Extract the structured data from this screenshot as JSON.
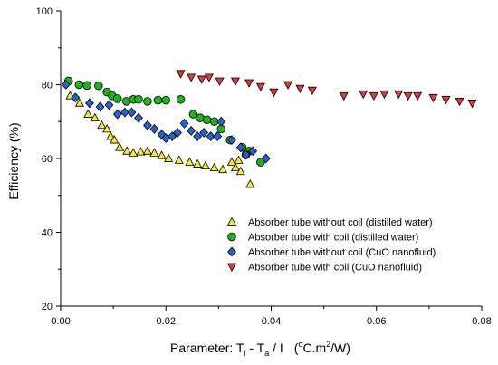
{
  "chart_data": {
    "type": "scatter",
    "xlabel_main": "Parameter:  T",
    "xlabel_sub1": "i",
    "xlabel_mid": " - T",
    "xlabel_sub2": "a",
    "xlabel_tail": " / I",
    "xlabel_unit_open": "(",
    "xlabel_unit_sup": "o",
    "xlabel_unit_rest": "C.m",
    "xlabel_unit_sup2": "2",
    "xlabel_unit_close": "/W)",
    "ylabel": "Efficiency (%)",
    "xlim": [
      0.0,
      0.08
    ],
    "ylim": [
      20,
      100
    ],
    "x_ticks": [
      "0.00",
      "0.02",
      "0.04",
      "0.06",
      "0.08"
    ],
    "y_ticks": [
      "20",
      "40",
      "60",
      "80",
      "100"
    ],
    "legend_position": "lower-right",
    "series": [
      {
        "name": "Absorber tube without coil (distilled water)",
        "marker": "triangle-up",
        "color": "#f0ec3c",
        "points": [
          [
            0.0018,
            77
          ],
          [
            0.0036,
            75
          ],
          [
            0.0052,
            72
          ],
          [
            0.0065,
            71
          ],
          [
            0.0078,
            69
          ],
          [
            0.0088,
            68
          ],
          [
            0.0095,
            66
          ],
          [
            0.0102,
            65
          ],
          [
            0.0112,
            63
          ],
          [
            0.0126,
            62
          ],
          [
            0.0138,
            61.5
          ],
          [
            0.0152,
            61.8
          ],
          [
            0.0165,
            62
          ],
          [
            0.0178,
            61.5
          ],
          [
            0.0192,
            60.8
          ],
          [
            0.0205,
            60
          ],
          [
            0.0225,
            59.5
          ],
          [
            0.0245,
            59
          ],
          [
            0.026,
            58.5
          ],
          [
            0.0275,
            58
          ],
          [
            0.0292,
            57.5
          ],
          [
            0.0308,
            57
          ],
          [
            0.0325,
            59
          ],
          [
            0.0332,
            57.5
          ],
          [
            0.0342,
            56.5
          ],
          [
            0.0338,
            59.5
          ],
          [
            0.036,
            53
          ]
        ]
      },
      {
        "name": "Absorber tube with coil (distilled water)",
        "marker": "circle",
        "color": "#22b022",
        "points": [
          [
            0.0015,
            81
          ],
          [
            0.0035,
            80
          ],
          [
            0.005,
            79.8
          ],
          [
            0.0072,
            79.7
          ],
          [
            0.0088,
            78
          ],
          [
            0.0098,
            77
          ],
          [
            0.0108,
            76.2
          ],
          [
            0.0125,
            75.5
          ],
          [
            0.0138,
            76
          ],
          [
            0.0148,
            76
          ],
          [
            0.0165,
            75.5
          ],
          [
            0.0185,
            75.8
          ],
          [
            0.02,
            75.8
          ],
          [
            0.0228,
            76
          ],
          [
            0.0252,
            72
          ],
          [
            0.0265,
            71
          ],
          [
            0.0278,
            70.5
          ],
          [
            0.0292,
            70
          ],
          [
            0.0305,
            68
          ],
          [
            0.0322,
            65
          ],
          [
            0.0345,
            63
          ],
          [
            0.0358,
            62
          ],
          [
            0.038,
            59
          ],
          [
            0.0352,
            61
          ]
        ]
      },
      {
        "name": "Absorber tube without coil (CuO nanofluid)",
        "marker": "diamond",
        "color": "#2a62c8",
        "points": [
          [
            0.001,
            80
          ],
          [
            0.0028,
            76.5
          ],
          [
            0.0055,
            75
          ],
          [
            0.0075,
            74
          ],
          [
            0.0092,
            74.5
          ],
          [
            0.0108,
            72
          ],
          [
            0.0122,
            72.5
          ],
          [
            0.0135,
            72.5
          ],
          [
            0.0148,
            71
          ],
          [
            0.0165,
            69
          ],
          [
            0.0178,
            68
          ],
          [
            0.0192,
            66.5
          ],
          [
            0.02,
            65.5
          ],
          [
            0.0212,
            66
          ],
          [
            0.0222,
            67
          ],
          [
            0.0235,
            69.5
          ],
          [
            0.0248,
            67.5
          ],
          [
            0.026,
            66
          ],
          [
            0.0272,
            67
          ],
          [
            0.0285,
            66
          ],
          [
            0.0298,
            66
          ],
          [
            0.0305,
            70
          ],
          [
            0.0325,
            65
          ],
          [
            0.0342,
            63
          ],
          [
            0.0352,
            61
          ],
          [
            0.0365,
            62
          ],
          [
            0.039,
            60
          ]
        ]
      },
      {
        "name": "Absorber tube with coil (CuO nanofluid)",
        "marker": "triangle-down",
        "color": "#e03c3c",
        "points": [
          [
            0.0228,
            83
          ],
          [
            0.0248,
            82
          ],
          [
            0.0268,
            81.5
          ],
          [
            0.0282,
            82
          ],
          [
            0.0302,
            81
          ],
          [
            0.0332,
            81
          ],
          [
            0.0358,
            80.5
          ],
          [
            0.038,
            79.5
          ],
          [
            0.0405,
            78
          ],
          [
            0.0432,
            80
          ],
          [
            0.0455,
            79
          ],
          [
            0.0478,
            78.5
          ],
          [
            0.0538,
            77
          ],
          [
            0.0575,
            77.5
          ],
          [
            0.0595,
            77
          ],
          [
            0.0615,
            77.5
          ],
          [
            0.0642,
            77.5
          ],
          [
            0.066,
            77
          ],
          [
            0.0678,
            77
          ],
          [
            0.0708,
            76.5
          ],
          [
            0.0732,
            76
          ],
          [
            0.0758,
            75.5
          ],
          [
            0.0782,
            75
          ]
        ]
      }
    ]
  }
}
